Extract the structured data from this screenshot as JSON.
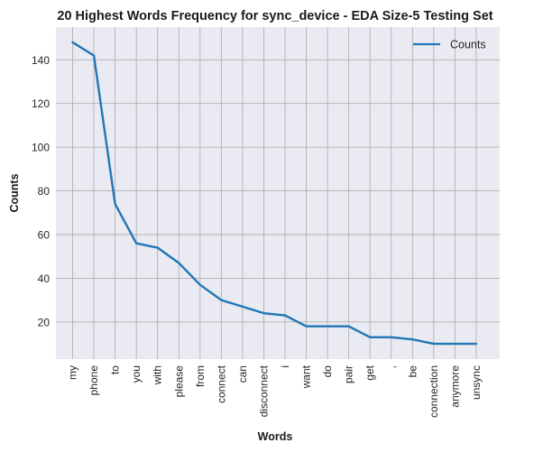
{
  "chart_data": {
    "type": "line",
    "title": "20 Highest Words Frequency for sync_device - EDA Size-5 Testing Set",
    "xlabel": "Words",
    "ylabel": "Counts",
    "categories": [
      "my",
      "phone",
      "to",
      "you",
      "with",
      "please",
      "from",
      "connect",
      "can",
      "disconnect",
      "i",
      "want",
      "do",
      "pair",
      "get",
      ",",
      "be",
      "connection",
      "anymore",
      "unsync"
    ],
    "series": [
      {
        "name": "Counts",
        "color": "#1f77b4",
        "values": [
          148,
          142,
          74,
          56,
          54,
          47,
          37,
          30,
          27,
          24,
          23,
          18,
          18,
          18,
          13,
          13,
          12,
          10,
          10,
          10
        ]
      }
    ],
    "ylim": [
      3,
      155
    ],
    "yticks": [
      20,
      40,
      60,
      80,
      100,
      120,
      140
    ],
    "grid": true,
    "legend_position": "top-right",
    "background": "#eaeaf2",
    "grid_color": "#b0b0b0"
  }
}
